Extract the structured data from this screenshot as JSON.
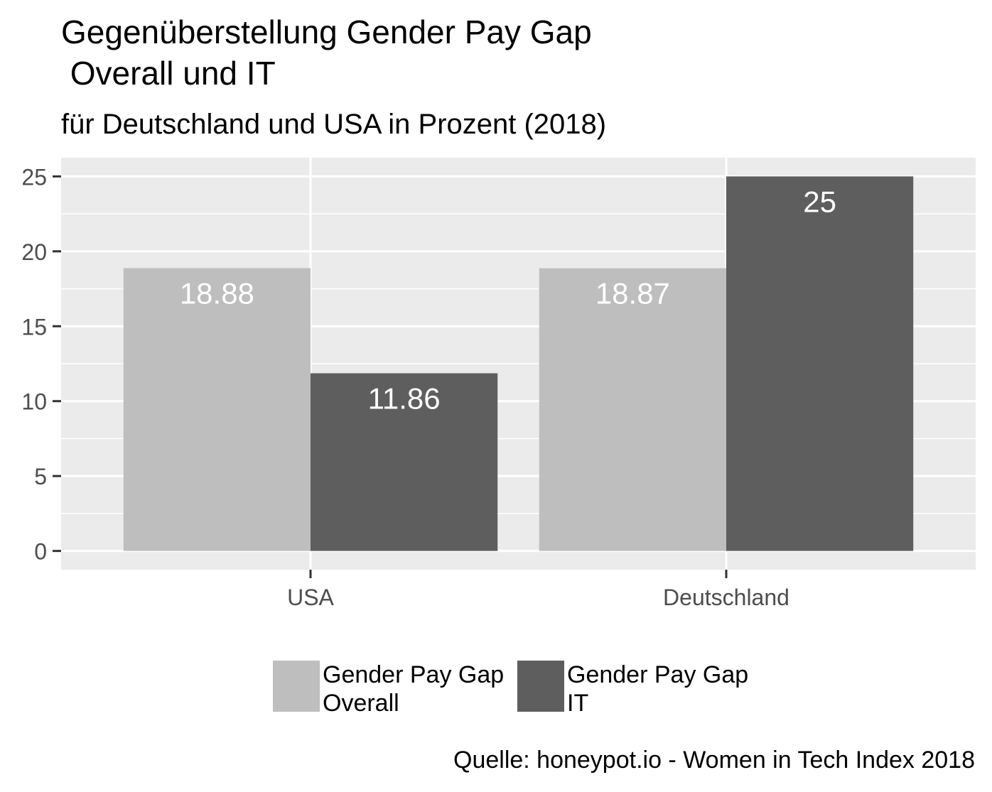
{
  "chart_data": {
    "type": "bar",
    "title_lines": [
      "Gegenüberstellung Gender Pay Gap",
      " Overall und IT"
    ],
    "subtitle": "für Deutschland und USA in Prozent (2018)",
    "caption": "Quelle: honeypot.io - Women in Tech Index 2018",
    "categories": [
      "USA",
      "Deutschland"
    ],
    "series": [
      {
        "name_lines": [
          "Gender Pay Gap",
          "Overall"
        ],
        "color": "#bebebe",
        "values": [
          18.88,
          18.87
        ],
        "labels": [
          "18.88",
          "18.87"
        ]
      },
      {
        "name_lines": [
          "Gender Pay Gap",
          "IT"
        ],
        "color": "#5e5e5e",
        "values": [
          11.86,
          25
        ],
        "labels": [
          "11.86",
          "25"
        ]
      }
    ],
    "y_ticks": [
      0,
      5,
      10,
      15,
      20,
      25
    ],
    "ylim": [
      -1.25,
      26.25
    ],
    "xlabel": "",
    "ylabel": "",
    "grid": true,
    "legend_position": "bottom",
    "panel_background": "#ebebeb"
  }
}
